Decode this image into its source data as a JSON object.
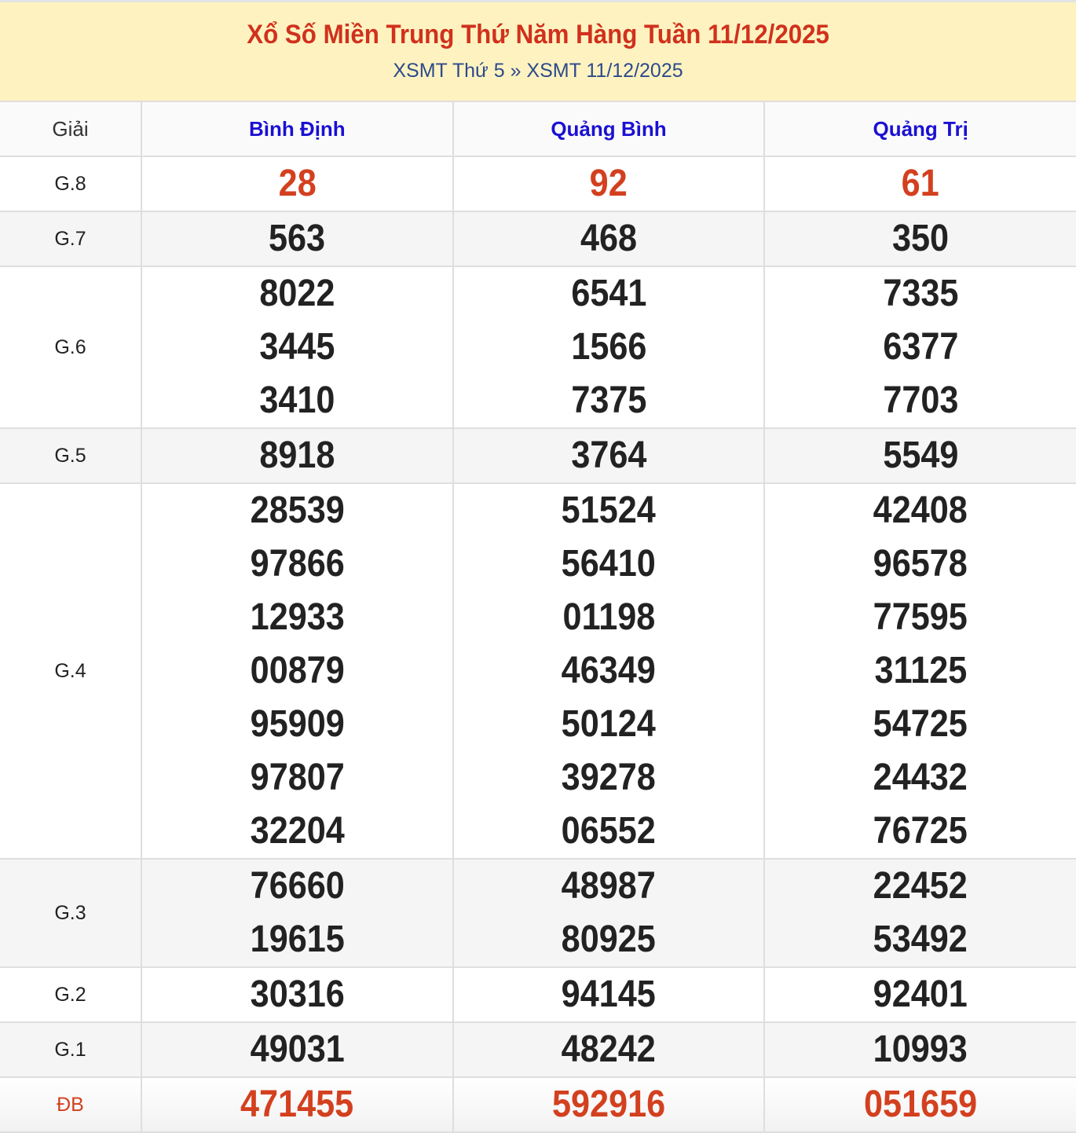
{
  "header": {
    "title": "Xổ Số Miền Trung Thứ Năm Hàng Tuần 11/12/2025",
    "breadcrumb": [
      "XSMT Thứ 5",
      "»",
      "XSMT 11/12/2025"
    ]
  },
  "colors": {
    "title": "#d0311d",
    "province": "#1a10d2",
    "highlight": "#d3401f",
    "banner_bg": "#fef3c0"
  },
  "table": {
    "label_header": "Giải",
    "provinces": [
      "Bình Định",
      "Quảng Bình",
      "Quảng Trị"
    ],
    "rows": [
      {
        "label": "G.8",
        "values": [
          [
            "28"
          ],
          [
            "92"
          ],
          [
            "61"
          ]
        ]
      },
      {
        "label": "G.7",
        "values": [
          [
            "563"
          ],
          [
            "468"
          ],
          [
            "350"
          ]
        ]
      },
      {
        "label": "G.6",
        "values": [
          [
            "8022",
            "3445",
            "3410"
          ],
          [
            "6541",
            "1566",
            "7375"
          ],
          [
            "7335",
            "6377",
            "7703"
          ]
        ]
      },
      {
        "label": "G.5",
        "values": [
          [
            "8918"
          ],
          [
            "3764"
          ],
          [
            "5549"
          ]
        ]
      },
      {
        "label": "G.4",
        "values": [
          [
            "28539",
            "97866",
            "12933",
            "00879",
            "95909",
            "97807",
            "32204"
          ],
          [
            "51524",
            "56410",
            "01198",
            "46349",
            "50124",
            "39278",
            "06552"
          ],
          [
            "42408",
            "96578",
            "77595",
            "31125",
            "54725",
            "24432",
            "76725"
          ]
        ]
      },
      {
        "label": "G.3",
        "values": [
          [
            "76660",
            "19615"
          ],
          [
            "48987",
            "80925"
          ],
          [
            "22452",
            "53492"
          ]
        ]
      },
      {
        "label": "G.2",
        "values": [
          [
            "30316"
          ],
          [
            "94145"
          ],
          [
            "92401"
          ]
        ]
      },
      {
        "label": "G.1",
        "values": [
          [
            "49031"
          ],
          [
            "48242"
          ],
          [
            "10993"
          ]
        ]
      },
      {
        "label": "ĐB",
        "values": [
          [
            "471455"
          ],
          [
            "592916"
          ],
          [
            "051659"
          ]
        ]
      }
    ]
  }
}
